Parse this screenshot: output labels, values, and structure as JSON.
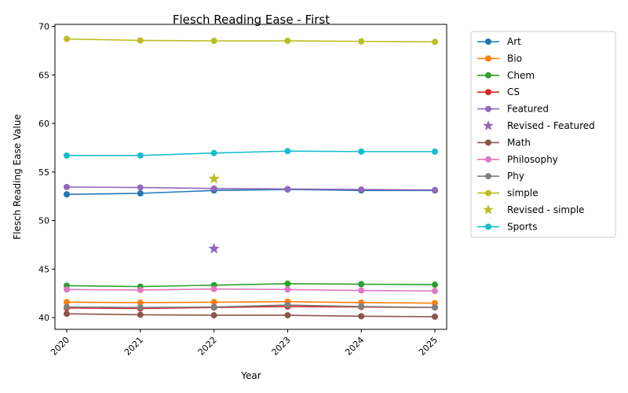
{
  "chart_data": {
    "type": "line",
    "title": "Flesch Reading Ease - First",
    "xlabel": "Year",
    "ylabel": "Flesch Reading Ease Value",
    "x": [
      "2020",
      "2021",
      "2022",
      "2023",
      "2024",
      "2025"
    ],
    "ylim": [
      38.8,
      70.2
    ],
    "yticks": [
      40,
      45,
      50,
      55,
      60,
      65,
      70
    ],
    "grid": false,
    "legend_position": "outside-right",
    "series": [
      {
        "name": "Art",
        "kind": "line",
        "color": "#1f77b4",
        "values": [
          52.7,
          52.8,
          53.1,
          53.2,
          53.1,
          53.1
        ]
      },
      {
        "name": "Bio",
        "kind": "line",
        "color": "#ff7f0e",
        "values": [
          41.6,
          41.55,
          41.6,
          41.65,
          41.55,
          41.5
        ]
      },
      {
        "name": "Chem",
        "kind": "line",
        "color": "#2ca02c",
        "values": [
          43.3,
          43.2,
          43.35,
          43.5,
          43.45,
          43.4
        ]
      },
      {
        "name": "CS",
        "kind": "line",
        "color": "#d62728",
        "values": [
          41.0,
          40.95,
          41.05,
          41.15,
          41.1,
          41.05
        ]
      },
      {
        "name": "Featured",
        "kind": "line",
        "color": "#9467bd",
        "values": [
          53.45,
          53.4,
          53.3,
          53.25,
          53.2,
          53.15
        ]
      },
      {
        "name": "Revised - Featured",
        "kind": "star",
        "color": "#9467bd",
        "x": "2022",
        "value": 47.1
      },
      {
        "name": "Math",
        "kind": "line",
        "color": "#8c564b",
        "values": [
          40.4,
          40.3,
          40.25,
          40.25,
          40.15,
          40.1
        ]
      },
      {
        "name": "Philosophy",
        "kind": "line",
        "color": "#e377c2",
        "values": [
          42.9,
          42.85,
          42.95,
          42.9,
          42.8,
          42.75
        ]
      },
      {
        "name": "Phy",
        "kind": "line",
        "color": "#7f7f7f",
        "values": [
          41.1,
          41.05,
          41.1,
          41.3,
          41.15,
          41.05
        ]
      },
      {
        "name": "simple",
        "kind": "line",
        "color": "#bcbd22",
        "values": [
          68.7,
          68.55,
          68.5,
          68.5,
          68.45,
          68.4
        ]
      },
      {
        "name": "Revised - simple",
        "kind": "star",
        "color": "#bcbd22",
        "x": "2022",
        "value": 54.3
      },
      {
        "name": "Sports",
        "kind": "line",
        "color": "#17becf",
        "values": [
          56.7,
          56.7,
          56.95,
          57.15,
          57.1,
          57.1
        ]
      }
    ]
  }
}
